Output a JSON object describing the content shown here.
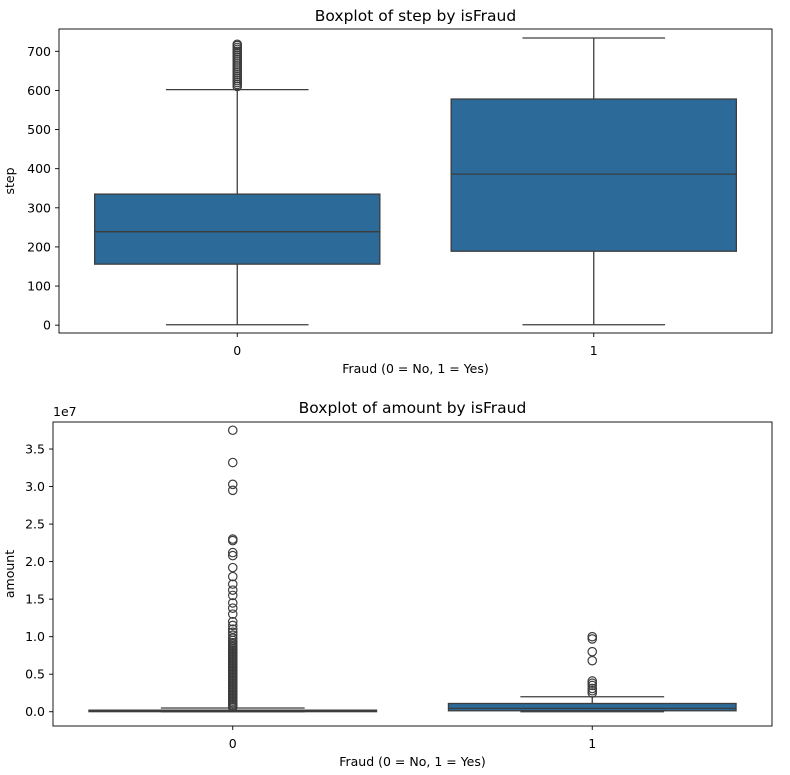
{
  "chart_data": [
    {
      "type": "box",
      "title": "Boxplot of step by isFraud",
      "xlabel": "Fraud (0 = No, 1 = Yes)",
      "ylabel": "step",
      "ylim": [
        -20,
        757
      ],
      "yticks": [
        0,
        100,
        200,
        300,
        400,
        500,
        600,
        700
      ],
      "ytick_labels": [
        "0",
        "100",
        "200",
        "300",
        "400",
        "500",
        "600",
        "700"
      ],
      "categories": [
        "0",
        "1"
      ],
      "color": "#2c6a99",
      "boxes": [
        {
          "category": "0",
          "whislo": 1,
          "q1": 156,
          "median": 239,
          "q3": 335,
          "whishi": 602,
          "fliers": [
            610,
            615,
            620,
            625,
            630,
            635,
            640,
            645,
            650,
            655,
            660,
            665,
            670,
            675,
            680,
            685,
            690,
            695,
            700,
            705,
            710,
            715,
            718
          ]
        },
        {
          "category": "1",
          "whislo": 1,
          "q1": 189,
          "median": 386,
          "q3": 578,
          "whishi": 734,
          "fliers": []
        }
      ]
    },
    {
      "type": "box",
      "title": "Boxplot of amount by isFraud",
      "xlabel": "Fraud (0 = No, 1 = Yes)",
      "ylabel": "amount",
      "scale_label": "1e7",
      "ylim": [
        -0.19,
        3.86
      ],
      "yticks": [
        0,
        0.5,
        1.0,
        1.5,
        2.0,
        2.5,
        3.0,
        3.5
      ],
      "ytick_labels": [
        "0.0",
        "0.5",
        "1.0",
        "1.5",
        "2.0",
        "2.5",
        "3.0",
        "3.5"
      ],
      "categories": [
        "0",
        "1"
      ],
      "color": "#2c6a99",
      "boxes": [
        {
          "category": "0",
          "whislo": 0,
          "q1": 0.0013,
          "median": 0.0075,
          "q3": 0.021,
          "whishi": 0.05,
          "fliers": [
            0.06,
            0.08,
            0.1,
            0.12,
            0.14,
            0.16,
            0.18,
            0.2,
            0.22,
            0.24,
            0.26,
            0.28,
            0.3,
            0.32,
            0.34,
            0.36,
            0.38,
            0.4,
            0.42,
            0.44,
            0.46,
            0.48,
            0.5,
            0.52,
            0.54,
            0.56,
            0.58,
            0.6,
            0.62,
            0.64,
            0.66,
            0.68,
            0.7,
            0.72,
            0.74,
            0.76,
            0.78,
            0.8,
            0.82,
            0.84,
            0.86,
            0.88,
            0.9,
            0.92,
            0.95,
            0.98,
            1.02,
            1.06,
            1.1,
            1.15,
            1.2,
            1.3,
            1.38,
            1.45,
            1.55,
            1.62,
            1.7,
            1.8,
            1.92,
            2.08,
            2.12,
            2.28,
            2.3,
            2.95,
            3.03,
            3.32,
            3.75
          ]
        },
        {
          "category": "1",
          "whislo": 0,
          "q1": 0.013,
          "median": 0.045,
          "q3": 0.11,
          "whishi": 0.2,
          "fliers": [
            0.25,
            0.28,
            0.31,
            0.35,
            0.38,
            0.41,
            0.68,
            0.8,
            0.97,
            1.0
          ]
        }
      ]
    }
  ]
}
